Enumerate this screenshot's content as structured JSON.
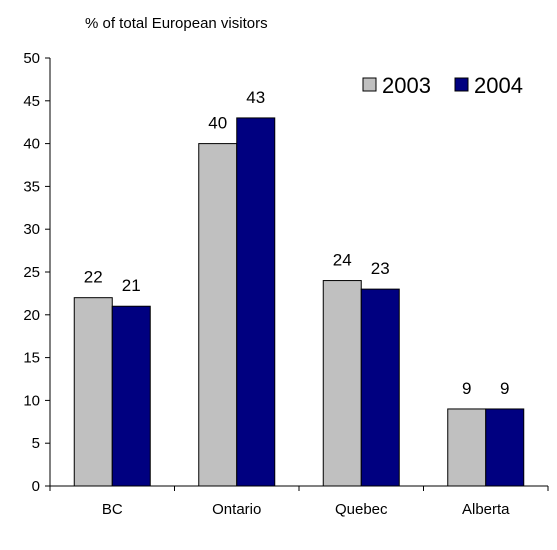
{
  "chart_data": {
    "type": "bar",
    "title": "",
    "ylabel": "% of total European visitors",
    "xlabel": "",
    "categories": [
      "BC",
      "Ontario",
      "Quebec",
      "Alberta"
    ],
    "series": [
      {
        "name": "2003",
        "values": [
          22,
          40,
          24,
          9
        ],
        "color": "#c0c0c0"
      },
      {
        "name": "2004",
        "values": [
          21,
          43,
          23,
          9
        ],
        "color": "#000080"
      }
    ],
    "ylim": [
      0,
      50
    ],
    "yticks": [
      0,
      5,
      10,
      15,
      20,
      25,
      30,
      35,
      40,
      45,
      50
    ],
    "grid": false,
    "legend_position": "top-right",
    "data_labels": true
  }
}
